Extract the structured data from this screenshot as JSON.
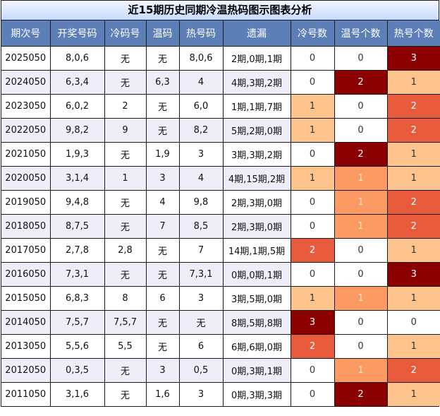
{
  "title": "近15期历史同期冷温热码图示图表分析",
  "headers": [
    "期次号",
    "开奖号码",
    "冷码号",
    "温码",
    "热号码",
    "遗漏",
    "冷号数",
    "温号个数",
    "热号个数"
  ],
  "rows": [
    {
      "issue": "2025050",
      "draw": "8,0,6",
      "cold": "无",
      "warm": "无",
      "hot": "8,0,6",
      "miss": "2期,0期,1期",
      "c": "0",
      "w": "0",
      "h": "3"
    },
    {
      "issue": "2024050",
      "draw": "6,3,4",
      "cold": "无",
      "warm": "6,3",
      "hot": "4",
      "miss": "4期,3期,2期",
      "c": "0",
      "w": "2",
      "h": "1"
    },
    {
      "issue": "2023050",
      "draw": "6,0,2",
      "cold": "2",
      "warm": "无",
      "hot": "6,0",
      "miss": "1期,1期,7期",
      "c": "1",
      "w": "0",
      "h": "2"
    },
    {
      "issue": "2022050",
      "draw": "9,8,2",
      "cold": "9",
      "warm": "无",
      "hot": "8,2",
      "miss": "5期,2期,0期",
      "c": "1",
      "w": "0",
      "h": "2"
    },
    {
      "issue": "2021050",
      "draw": "1,9,3",
      "cold": "无",
      "warm": "1,9",
      "hot": "3",
      "miss": "3期,3期,2期",
      "c": "0",
      "w": "2",
      "h": "1"
    },
    {
      "issue": "2020050",
      "draw": "3,1,4",
      "cold": "1",
      "warm": "3",
      "hot": "4",
      "miss": "4期,15期,2期",
      "c": "1",
      "w": "1",
      "h": "1"
    },
    {
      "issue": "2019050",
      "draw": "9,4,8",
      "cold": "无",
      "warm": "4",
      "hot": "9,8",
      "miss": "2期,3期,0期",
      "c": "0",
      "w": "1",
      "h": "2"
    },
    {
      "issue": "2018050",
      "draw": "8,7,5",
      "cold": "无",
      "warm": "7",
      "hot": "8,5",
      "miss": "2期,3期,0期",
      "c": "0",
      "w": "1",
      "h": "2"
    },
    {
      "issue": "2017050",
      "draw": "2,7,8",
      "cold": "2,8",
      "warm": "无",
      "hot": "7",
      "miss": "14期,1期,5期",
      "c": "2",
      "w": "0",
      "h": "1"
    },
    {
      "issue": "2016050",
      "draw": "7,3,1",
      "cold": "无",
      "warm": "无",
      "hot": "7,3,1",
      "miss": "0期,0期,1期",
      "c": "0",
      "w": "0",
      "h": "3"
    },
    {
      "issue": "2015050",
      "draw": "6,8,3",
      "cold": "8",
      "warm": "6",
      "hot": "3",
      "miss": "3期,5期,0期",
      "c": "1",
      "w": "1",
      "h": "1"
    },
    {
      "issue": "2014050",
      "draw": "7,5,7",
      "cold": "7,5,7",
      "warm": "无",
      "hot": "无",
      "miss": "8期,5期,8期",
      "c": "3",
      "w": "0",
      "h": "0"
    },
    {
      "issue": "2013050",
      "draw": "5,5,6",
      "cold": "5,5",
      "warm": "无",
      "hot": "6",
      "miss": "6期,6期,0期",
      "c": "2",
      "w": "0",
      "h": "1"
    },
    {
      "issue": "2012050",
      "draw": "0,3,5",
      "cold": "无",
      "warm": "3",
      "hot": "0,5",
      "miss": "0期,3期,1期",
      "c": "0",
      "w": "1",
      "h": "2"
    },
    {
      "issue": "2011050",
      "draw": "3,1,6",
      "cold": "无",
      "warm": "1,6",
      "hot": "3",
      "miss": "0期,3期,3期",
      "c": "0",
      "w": "2",
      "h": "1"
    }
  ],
  "colors": {
    "header_bg": "#5d7fb8",
    "level_0": "#ffffff",
    "level_1": "#fcc48c",
    "level_1_warm": "#fc9a64",
    "level_2": "#e85a3c",
    "level_3": "#8b0000",
    "alt_row": "#efedf7"
  }
}
